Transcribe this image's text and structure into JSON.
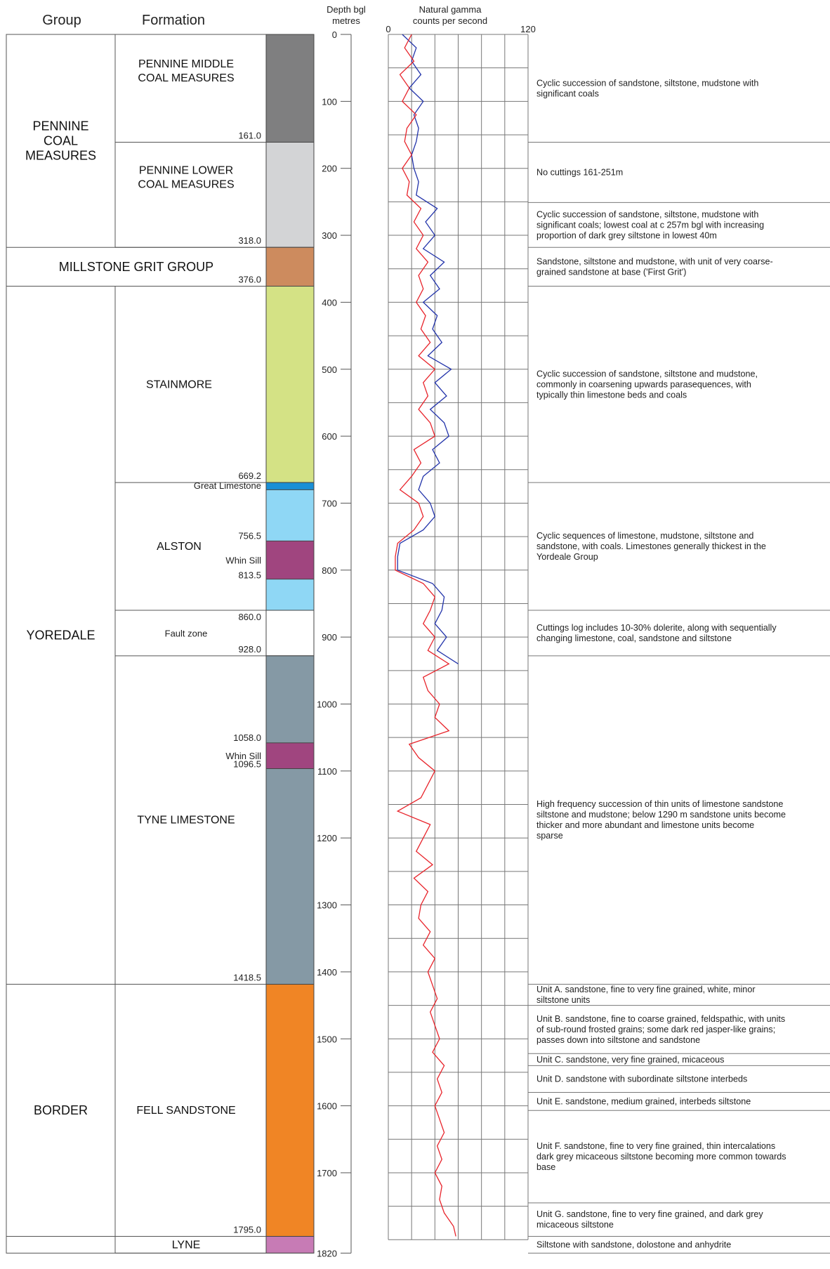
{
  "headers": {
    "group": "Group",
    "formation": "Formation",
    "depth": [
      "Depth bgl",
      "metres"
    ],
    "gamma": [
      "Natural gamma",
      "counts per second"
    ]
  },
  "scale": {
    "depth_ticks": [
      0,
      100,
      200,
      300,
      400,
      500,
      600,
      700,
      800,
      900,
      1000,
      1100,
      1200,
      1300,
      1400,
      1500,
      1600,
      1700,
      1820
    ],
    "gamma_ticks": [
      0,
      120
    ],
    "gamma_min": 0,
    "gamma_max": 120
  },
  "colors": {
    "pennine_middle": "#7f7f80",
    "pennine_lower": "#d3d4d6",
    "millstone": "#cd8b5e",
    "stainmore": "#d4e285",
    "great_limestone": "#1a8fd6",
    "alston": "#8fd7f5",
    "whin_sill": "#a0457f",
    "fault_zone": "#ffffff",
    "tyne": "#8599a5",
    "fell": "#f08525",
    "lyne": "#c77bb5",
    "blue_curve": "#2233aa",
    "red_curve": "#e8242b"
  },
  "groups": [
    {
      "name": [
        "PENNINE",
        "COAL",
        "MEASURES"
      ],
      "top": 0,
      "base": 318.0
    },
    {
      "name": [
        "MILLSTONE GRIT GROUP"
      ],
      "top": 318.0,
      "base": 376.0
    },
    {
      "name": [
        "YOREDALE"
      ],
      "top": 376.0,
      "base": 1418.5
    },
    {
      "name": [
        "BORDER"
      ],
      "top": 1418.5,
      "base": 1795.0
    }
  ],
  "formations": [
    {
      "name": [
        "PENNINE MIDDLE",
        "COAL MEASURES"
      ],
      "top": 0,
      "base": 161.0,
      "base_label": "161.0",
      "color": "pennine_middle"
    },
    {
      "name": [
        "PENNINE LOWER",
        "COAL MEASURES"
      ],
      "top": 161.0,
      "base": 318.0,
      "base_label": "318.0",
      "color": "pennine_lower"
    },
    {
      "name": [],
      "top": 318.0,
      "base": 376.0,
      "base_label": "376.0",
      "color": "millstone"
    },
    {
      "name": [
        "STAINMORE"
      ],
      "top": 376.0,
      "base": 669.2,
      "base_label": "669.2",
      "color": "stainmore"
    },
    {
      "name": [
        "ALSTON"
      ],
      "top": 669.2,
      "base": 860.0,
      "base_label": "",
      "color": "alston"
    },
    {
      "name": [
        "Fault zone"
      ],
      "top": 860.0,
      "base": 928.0,
      "base_label": "928.0",
      "color": "fault_zone"
    },
    {
      "name": [
        "TYNE LIMESTONE"
      ],
      "top": 928.0,
      "base": 1418.5,
      "base_label": "1418.5",
      "color": "tyne"
    },
    {
      "name": [
        "FELL SANDSTONE"
      ],
      "top": 1418.5,
      "base": 1795.0,
      "base_label": "1795.0",
      "color": "fell"
    },
    {
      "name": [
        "LYNE"
      ],
      "top": 1795.0,
      "base": 1820,
      "base_label": "",
      "color": "lyne"
    }
  ],
  "sub_units": [
    {
      "name": "Great Limestone",
      "top": 669.2,
      "base": 680,
      "color": "great_limestone"
    },
    {
      "name": "Whin Sill",
      "top": 756.5,
      "base": 813.5,
      "color": "whin_sill",
      "top_label": "756.5",
      "base_label": "813.5"
    },
    {
      "name": "Whin Sill",
      "top": 1058.0,
      "base": 1096.5,
      "color": "whin_sill",
      "top_label": "1058.0",
      "base_label": "1096.5"
    }
  ],
  "extra_labels": [
    {
      "text": "860.0",
      "depth": 860.0
    }
  ],
  "descriptions": [
    {
      "top": 0,
      "base": 161,
      "lines": [
        "Cyclic succession of sandstone, siltstone, mudstone with",
        "significant coals"
      ]
    },
    {
      "top": 161,
      "base": 251,
      "lines": [
        "No cuttings 161-251m"
      ]
    },
    {
      "top": 251,
      "base": 318,
      "lines": [
        "Cyclic succession of sandstone, siltstone, mudstone with",
        "significant coals; lowest coal at c 257m bgl with increasing",
        "proportion of dark grey siltstone in lowest 40m"
      ]
    },
    {
      "top": 318,
      "base": 376,
      "lines": [
        "Sandstone, siltstone and mudstone, with unit of very coarse-",
        "grained sandstone at base ('First Grit')"
      ]
    },
    {
      "top": 376,
      "base": 669.2,
      "lines": [
        "Cyclic succession of sandstone, siltstone and mudstone,",
        "commonly in coarsening upwards parasequences, with",
        "typically thin limestone beds and coals"
      ]
    },
    {
      "top": 669.2,
      "base": 860,
      "lines": [
        "Cyclic sequences of limestone, mudstone, siltstone and",
        "sandstone, with coals. Limestones generally thickest  in the",
        "Yordeale Group"
      ]
    },
    {
      "top": 860,
      "base": 928,
      "lines": [
        "Cuttings log includes 10-30% dolerite, along with sequentially",
        "changing limestone, coal, sandstone and siltstone"
      ]
    },
    {
      "top": 928,
      "base": 1418.5,
      "lines": [
        "High frequency succession of thin units of limestone sandstone",
        "siltstone and mudstone; below 1290 m sandstone units become",
        "thicker and more abundant and limestone units become",
        "sparse"
      ]
    },
    {
      "top": 1418.5,
      "base": 1450,
      "lines": [
        "Unit A.  sandstone, fine to very fine grained, white, minor",
        "siltstone units"
      ]
    },
    {
      "top": 1450,
      "base": 1522,
      "lines": [
        "Unit B.  sandstone, fine to coarse grained, feldspathic, with units",
        "of sub-round frosted grains; some dark red jasper-like grains;",
        "passes down into siltstone and sandstone"
      ]
    },
    {
      "top": 1522,
      "base": 1540,
      "lines": [
        "Unit C.  sandstone, very fine grained, micaceous"
      ]
    },
    {
      "top": 1540,
      "base": 1580,
      "lines": [
        "Unit D.  sandstone with subordinate siltstone interbeds"
      ]
    },
    {
      "top": 1580,
      "base": 1607,
      "lines": [
        "Unit E.  sandstone, medium grained, interbeds siltstone"
      ]
    },
    {
      "top": 1607,
      "base": 1745,
      "lines": [
        "Unit F.  sandstone, fine to very fine grained, thin intercalations",
        "dark grey micaceous siltstone becoming more common towards",
        "base"
      ]
    },
    {
      "top": 1745,
      "base": 1795,
      "lines": [
        "Unit G. sandstone, fine to very fine grained, and dark grey",
        "micaceous siltstone"
      ]
    },
    {
      "top": 1795,
      "base": 1820,
      "lines": [
        "Siltstone with sandstone, dolostone and anhydrite"
      ]
    }
  ],
  "chart_data": {
    "type": "line",
    "xlabel": "Natural gamma counts per second",
    "ylabel": "Depth bgl metres",
    "xlim": [
      0,
      120
    ],
    "ylim": [
      0,
      1820
    ],
    "grid": true,
    "series": [
      {
        "color": "blue_curve",
        "depth": [
          0,
          20,
          40,
          60,
          80,
          100,
          120,
          140,
          160,
          180,
          200,
          220,
          240,
          260,
          280,
          300,
          320,
          340,
          360,
          380,
          400,
          420,
          440,
          460,
          480,
          500,
          520,
          540,
          560,
          580,
          600,
          620,
          640,
          660,
          680,
          700,
          720,
          740,
          760,
          780,
          800,
          820,
          840,
          860,
          880,
          900,
          920,
          940
        ],
        "values": [
          12,
          24,
          20,
          28,
          18,
          30,
          22,
          26,
          24,
          20,
          22,
          26,
          24,
          42,
          32,
          40,
          30,
          48,
          36,
          44,
          30,
          42,
          38,
          46,
          34,
          54,
          40,
          50,
          36,
          48,
          52,
          38,
          44,
          30,
          26,
          36,
          40,
          30,
          10,
          8,
          8,
          38,
          48,
          46,
          40,
          50,
          42,
          60
        ]
      },
      {
        "color": "red_curve",
        "depth": [
          0,
          20,
          40,
          60,
          80,
          100,
          120,
          140,
          160,
          180,
          200,
          220,
          240,
          260,
          280,
          300,
          320,
          340,
          360,
          380,
          400,
          420,
          440,
          460,
          480,
          500,
          520,
          540,
          560,
          580,
          600,
          620,
          640,
          660,
          680,
          700,
          720,
          740,
          760,
          780,
          800,
          820,
          840,
          860,
          880,
          900,
          920,
          940,
          960,
          980,
          1000,
          1020,
          1040,
          1060,
          1080,
          1100,
          1120,
          1140,
          1160,
          1180,
          1200,
          1220,
          1240,
          1260,
          1280,
          1300,
          1320,
          1340,
          1360,
          1380,
          1400,
          1420,
          1440,
          1460,
          1480,
          1500,
          1520,
          1540,
          1560,
          1580,
          1600,
          1620,
          1640,
          1660,
          1680,
          1700,
          1720,
          1740,
          1760,
          1780,
          1795
        ],
        "values": [
          20,
          14,
          22,
          10,
          18,
          12,
          24,
          16,
          14,
          20,
          12,
          18,
          16,
          28,
          22,
          30,
          24,
          34,
          26,
          30,
          24,
          32,
          28,
          36,
          26,
          40,
          30,
          34,
          26,
          36,
          40,
          22,
          28,
          20,
          10,
          26,
          30,
          22,
          8,
          6,
          6,
          30,
          40,
          36,
          30,
          40,
          34,
          52,
          30,
          34,
          44,
          40,
          52,
          18,
          26,
          40,
          34,
          28,
          8,
          36,
          30,
          24,
          38,
          22,
          34,
          28,
          26,
          36,
          30,
          40,
          34,
          38,
          42,
          36,
          40,
          44,
          38,
          48,
          42,
          46,
          40,
          44,
          48,
          42,
          46,
          40,
          46,
          44,
          48,
          56,
          58
        ]
      }
    ]
  }
}
